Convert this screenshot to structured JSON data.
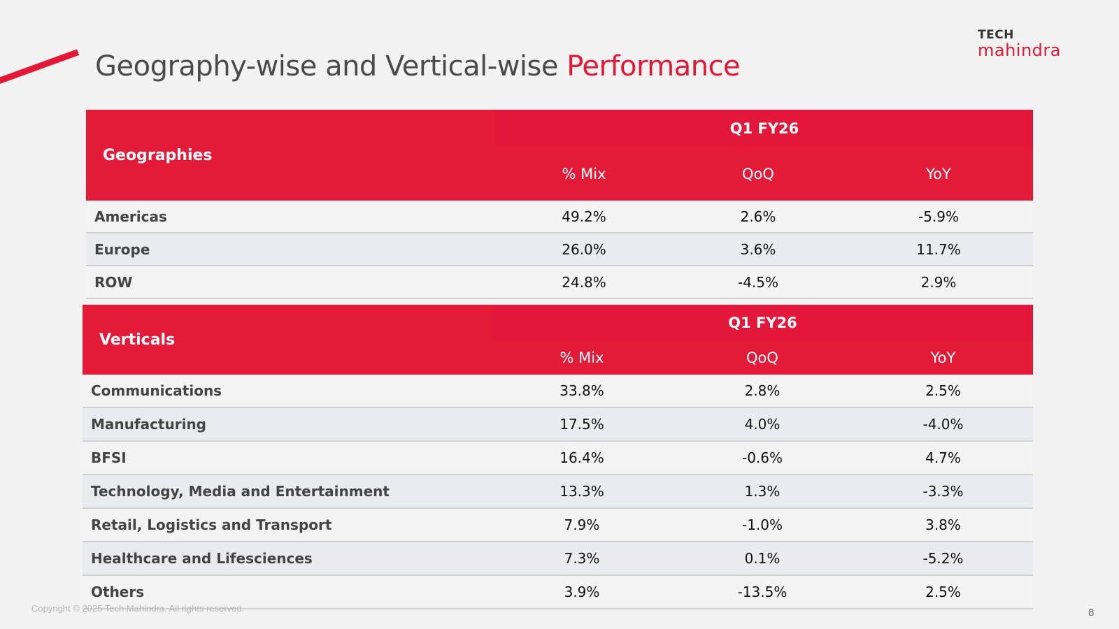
{
  "title": {
    "prefix": "Geography-wise and Vertical-wise",
    "highlight": "Performance"
  },
  "logo": {
    "line1": "TECH",
    "line2": "mahindra"
  },
  "colors": {
    "accent": "#e31837",
    "header_bg": "#e31a38",
    "title_text": "#4a4a4a"
  },
  "geographies": {
    "section_label": "Geographies",
    "period": "Q1 FY26",
    "columns": [
      "% Mix",
      "QoQ",
      "YoY"
    ],
    "rows": [
      {
        "name": "Americas",
        "mix": "49.2%",
        "qoq": "2.6%",
        "yoy": "-5.9%"
      },
      {
        "name": "Europe",
        "mix": "26.0%",
        "qoq": "3.6%",
        "yoy": "11.7%"
      },
      {
        "name": "ROW",
        "mix": "24.8%",
        "qoq": "-4.5%",
        "yoy": "2.9%"
      }
    ]
  },
  "verticals": {
    "section_label": "Verticals",
    "period": "Q1 FY26",
    "columns": [
      "% Mix",
      "QoQ",
      "YoY"
    ],
    "rows": [
      {
        "name": "Communications",
        "mix": "33.8%",
        "qoq": "2.8%",
        "yoy": "2.5%"
      },
      {
        "name": "Manufacturing",
        "mix": "17.5%",
        "qoq": "4.0%",
        "yoy": "-4.0%"
      },
      {
        "name": "BFSI",
        "mix": "16.4%",
        "qoq": "-0.6%",
        "yoy": "4.7%"
      },
      {
        "name": "Technology, Media and Entertainment",
        "mix": "13.3%",
        "qoq": "1.3%",
        "yoy": "-3.3%"
      },
      {
        "name": "Retail, Logistics and Transport",
        "mix": "7.9%",
        "qoq": "-1.0%",
        "yoy": "3.8%"
      },
      {
        "name": "Healthcare and Lifesciences",
        "mix": "7.3%",
        "qoq": "0.1%",
        "yoy": "-5.2%"
      },
      {
        "name": "Others",
        "mix": "3.9%",
        "qoq": "-13.5%",
        "yoy": "2.5%"
      }
    ]
  },
  "footer": {
    "copyright": "Copyright © 2025 Tech Mahindra. All rights reserved.",
    "page_number": "8"
  }
}
